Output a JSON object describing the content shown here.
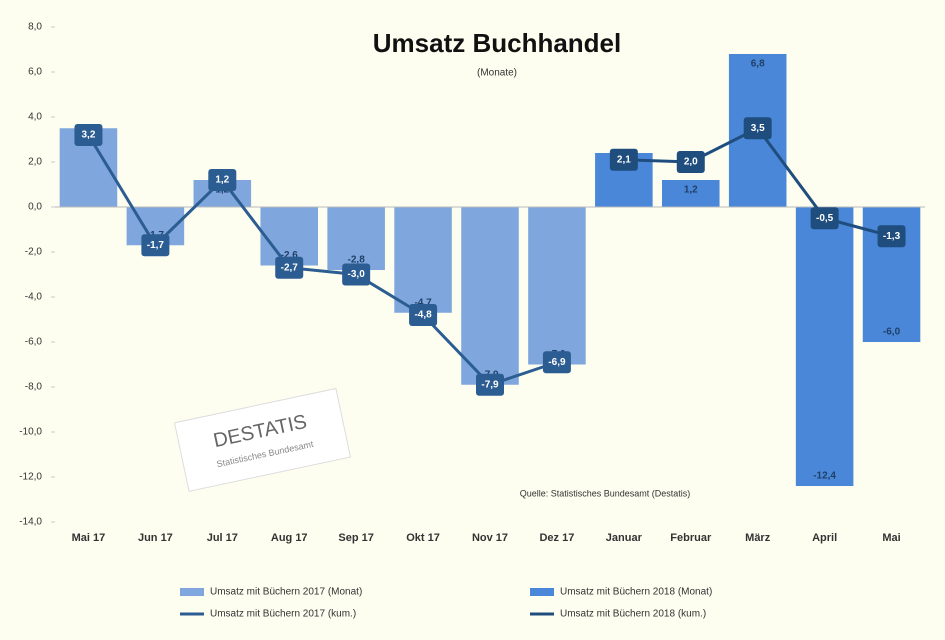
{
  "chart_data": {
    "type": "bar",
    "title": "Umsatz Buchhandel",
    "subtitle": "(Monate)",
    "source": "Quelle: Statistisches Bundesamt (Destatis)",
    "watermark": "DESTATIS",
    "watermark_sub": "Statistisches Bundesamt",
    "categories": [
      "Mai 17",
      "Jun 17",
      "Jul 17",
      "Aug 17",
      "Sep 17",
      "Okt 17",
      "Nov 17",
      "Dez 17",
      "Januar",
      "Februar",
      "März",
      "April",
      "Mai"
    ],
    "series": [
      {
        "name": "Umsatz mit Büchern 2017 (Monat)",
        "kind": "bar",
        "color": "#7fa7dd",
        "values": [
          3.5,
          -1.7,
          1.2,
          -2.6,
          -2.8,
          -4.7,
          -7.9,
          -7.0,
          null,
          null,
          null,
          null,
          null
        ],
        "value_labels": [
          "3,5",
          "-1,7",
          "1,2",
          "-2,6",
          "-2,8",
          "-4,7",
          "-7,9",
          "-7,0",
          null,
          null,
          null,
          null,
          null
        ]
      },
      {
        "name": "Umsatz mit Büchern 2018 (Monat)",
        "kind": "bar",
        "color": "#4a87d8",
        "values": [
          null,
          null,
          null,
          null,
          null,
          null,
          null,
          null,
          2.4,
          1.2,
          6.8,
          -12.4,
          -6.0
        ],
        "value_labels": [
          null,
          null,
          null,
          null,
          null,
          null,
          null,
          null,
          "2,4",
          "1,2",
          "6,8",
          "-12,4",
          "-6,0"
        ]
      },
      {
        "name": "Umsatz mit Büchern 2017 (kum.)",
        "kind": "line",
        "color": "#2c5d92",
        "values": [
          3.2,
          -1.7,
          1.2,
          -2.7,
          -3.0,
          -4.8,
          -7.9,
          -6.9,
          null,
          null,
          null,
          null,
          null
        ],
        "value_labels": [
          "3,2",
          "-1,7",
          "1,2",
          "-2,7",
          "-3,0",
          "-4,8",
          "-7,9",
          "-6,9",
          null,
          null,
          null,
          null,
          null
        ]
      },
      {
        "name": "Umsatz mit Büchern 2018 (kum.)",
        "kind": "line",
        "color": "#1f4e7e",
        "values": [
          null,
          null,
          null,
          null,
          null,
          null,
          null,
          null,
          2.1,
          2.0,
          3.5,
          -0.5,
          -1.3
        ],
        "value_labels": [
          null,
          null,
          null,
          null,
          null,
          null,
          null,
          null,
          "2,1",
          "2,0",
          "3,5",
          "-0,5",
          "-1,3"
        ]
      }
    ],
    "ylim": [
      -14,
      8
    ],
    "yticks": [
      {
        "value": 8,
        "label": "8,0"
      },
      {
        "value": 6,
        "label": "6,0"
      },
      {
        "value": 4,
        "label": "4,0"
      },
      {
        "value": 2,
        "label": "2,0"
      },
      {
        "value": 0,
        "label": "0,0"
      },
      {
        "value": -2,
        "label": "-2,0"
      },
      {
        "value": -4,
        "label": "-4,0"
      },
      {
        "value": -6,
        "label": "-6,0"
      },
      {
        "value": -8,
        "label": "-8,0"
      },
      {
        "value": -10,
        "label": "-10,0"
      },
      {
        "value": -12,
        "label": "-12,0"
      },
      {
        "value": -14,
        "label": "-14,0"
      }
    ],
    "grid": false
  }
}
